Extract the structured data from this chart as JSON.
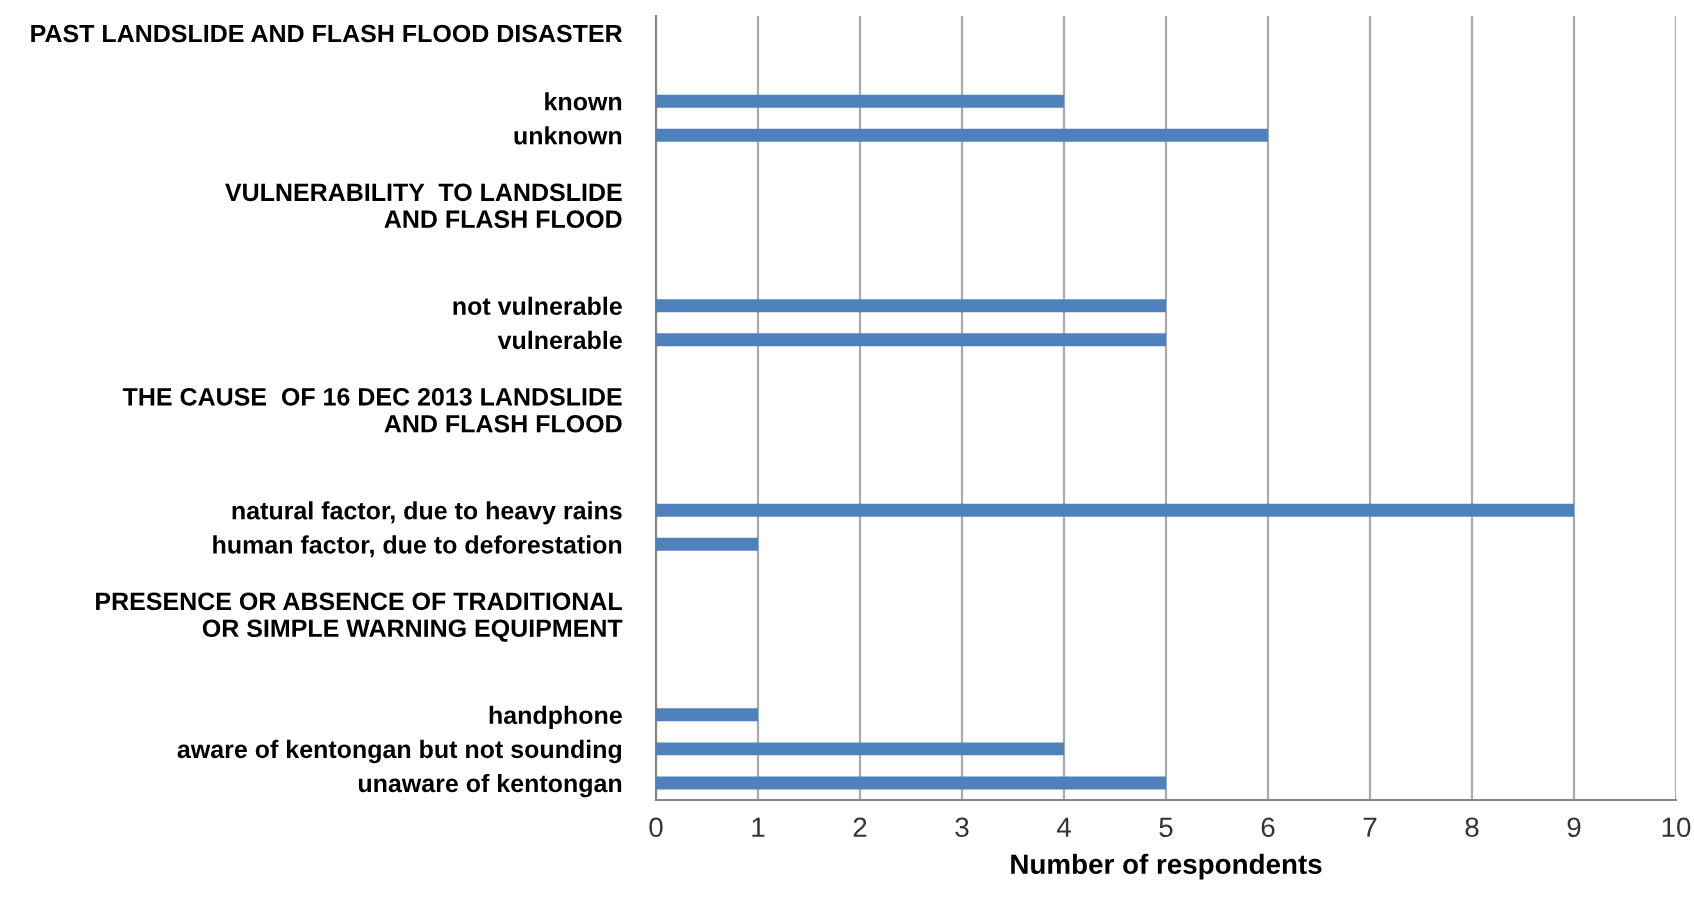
{
  "chart_data": {
    "type": "bar",
    "orientation": "horizontal",
    "xlabel": "Number of respondents",
    "categories": [
      "PAST LANDSLIDE AND FLASH FLOOD DISASTER",
      null,
      "known",
      "unknown",
      null,
      "VULNERABILITY  TO LANDSLIDE\nAND FLASH FLOOD",
      null,
      null,
      "not vulnerable",
      "vulnerable",
      null,
      "THE CAUSE  OF 16 DEC 2013 LANDSLIDE\nAND FLASH FLOOD",
      null,
      null,
      "natural factor, due to heavy rains",
      "human factor, due to deforestation",
      null,
      "PRESENCE OR ABSENCE OF TRADITIONAL\nOR SIMPLE WARNING EQUIPMENT",
      null,
      null,
      "handphone",
      "aware of kentongan but not sounding",
      "unaware of kentongan"
    ],
    "values": [
      null,
      null,
      4,
      6,
      null,
      null,
      null,
      null,
      5,
      5,
      null,
      null,
      null,
      null,
      9,
      1,
      null,
      null,
      null,
      null,
      1,
      4,
      5
    ],
    "color": "#4f81bd",
    "xlim": [
      0,
      10
    ],
    "xticks": [
      0,
      1,
      2,
      3,
      4,
      5,
      6,
      7,
      8,
      9,
      10
    ],
    "grid": "x"
  }
}
